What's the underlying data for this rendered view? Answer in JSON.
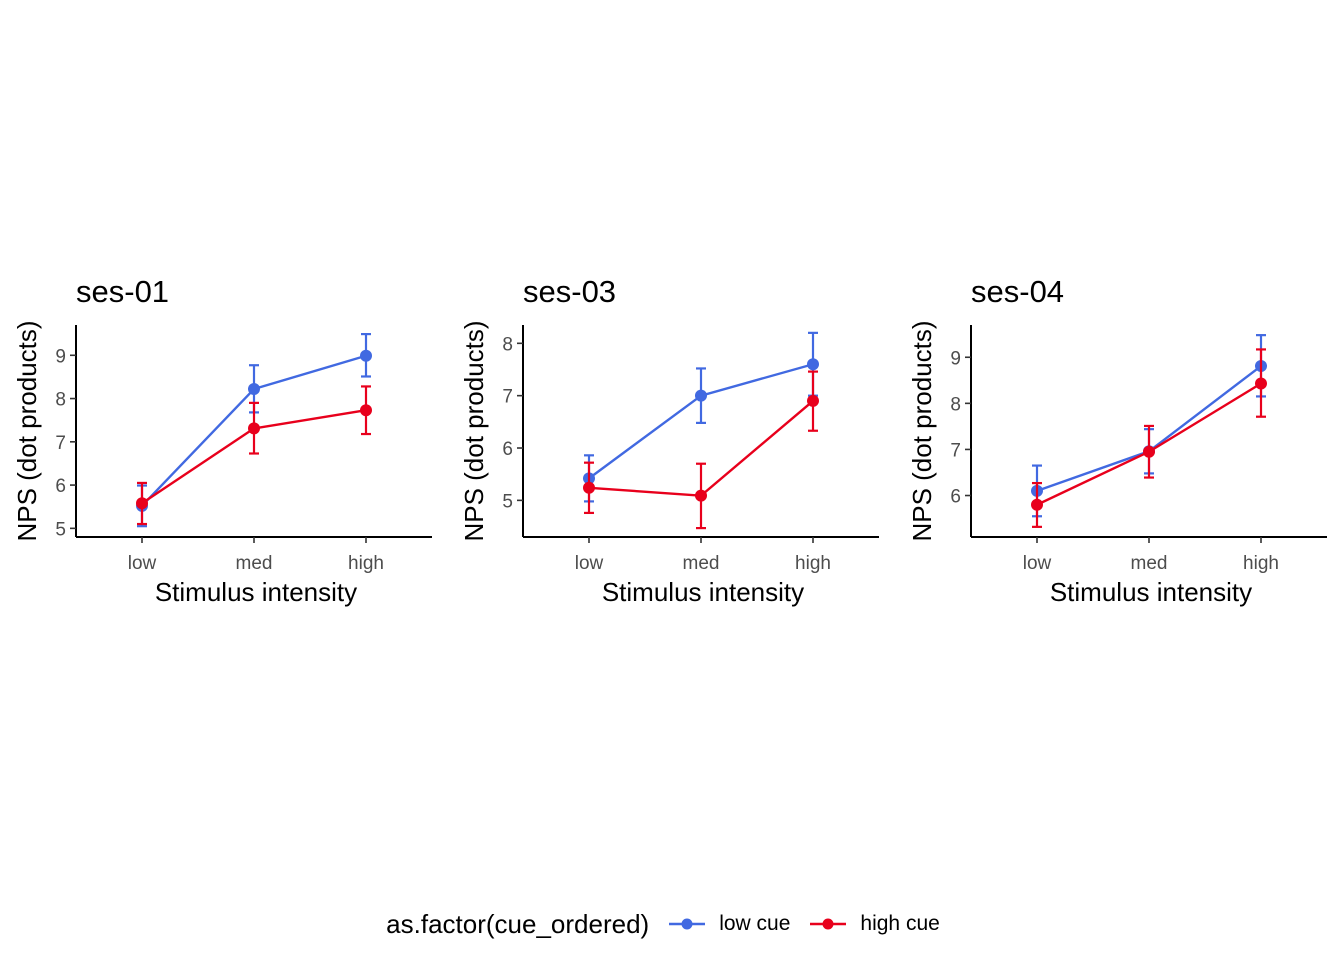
{
  "chart_data": [
    {
      "type": "line",
      "title": "ses-01",
      "xlabel": "Stimulus intensity",
      "ylabel": "NPS (dot products)",
      "categories": [
        "low",
        "med",
        "high"
      ],
      "ylim": [
        4.8,
        9.7
      ],
      "yticks": [
        5,
        6,
        7,
        8,
        9
      ],
      "grid": false,
      "series": [
        {
          "name": "low cue",
          "color": "#4169E1",
          "values": [
            5.52,
            8.22,
            8.99
          ],
          "err_low": [
            5.05,
            7.68,
            8.51
          ],
          "err_high": [
            5.99,
            8.77,
            9.49
          ]
        },
        {
          "name": "high cue",
          "color": "#E8001C",
          "values": [
            5.58,
            7.31,
            7.73
          ],
          "err_low": [
            5.1,
            6.73,
            7.18
          ],
          "err_high": [
            6.05,
            7.9,
            8.28
          ]
        }
      ]
    },
    {
      "type": "line",
      "title": "ses-03",
      "xlabel": "Stimulus intensity",
      "ylabel": "NPS (dot products)",
      "categories": [
        "low",
        "med",
        "high"
      ],
      "ylim": [
        4.3,
        8.35
      ],
      "yticks": [
        5,
        6,
        7,
        8
      ],
      "grid": false,
      "series": [
        {
          "name": "low cue",
          "color": "#4169E1",
          "values": [
            5.42,
            7.0,
            7.6
          ],
          "err_low": [
            4.98,
            6.48,
            7.0
          ],
          "err_high": [
            5.86,
            7.52,
            8.2
          ]
        },
        {
          "name": "high cue",
          "color": "#E8001C",
          "values": [
            5.24,
            5.09,
            6.9
          ],
          "err_low": [
            4.76,
            4.47,
            6.33
          ],
          "err_high": [
            5.72,
            5.7,
            7.46
          ]
        }
      ]
    },
    {
      "type": "line",
      "title": "ses-04",
      "xlabel": "Stimulus intensity",
      "ylabel": "NPS (dot products)",
      "categories": [
        "low",
        "med",
        "high"
      ],
      "ylim": [
        5.1,
        9.7
      ],
      "yticks": [
        6,
        7,
        8,
        9
      ],
      "grid": false,
      "series": [
        {
          "name": "low cue",
          "color": "#4169E1",
          "values": [
            6.1,
            6.96,
            8.81
          ],
          "err_low": [
            5.55,
            6.48,
            8.15
          ],
          "err_high": [
            6.65,
            7.44,
            9.48
          ]
        },
        {
          "name": "high cue",
          "color": "#E8001C",
          "values": [
            5.8,
            6.95,
            8.43
          ],
          "err_low": [
            5.32,
            6.39,
            7.71
          ],
          "err_high": [
            6.27,
            7.51,
            9.17
          ]
        }
      ]
    }
  ],
  "legend": {
    "title": "as.factor(cue_ordered)",
    "position": "bottom",
    "items": [
      {
        "label": "low cue",
        "color": "#4169E1"
      },
      {
        "label": "high cue",
        "color": "#E8001C"
      }
    ]
  }
}
